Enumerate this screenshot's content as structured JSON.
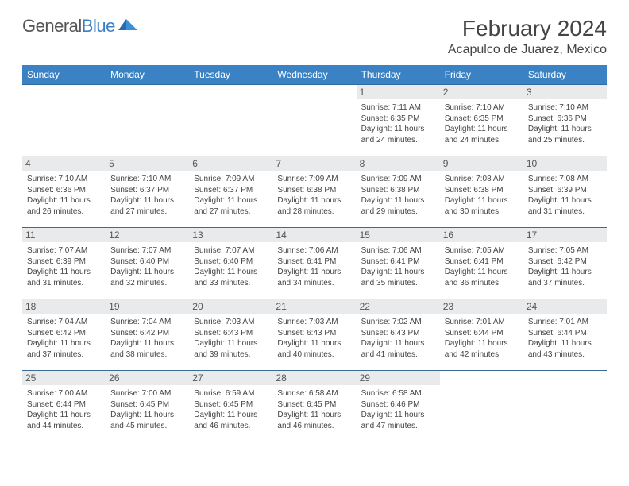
{
  "logo": {
    "word1": "General",
    "word2": "Blue"
  },
  "colors": {
    "header_bg": "#3b82c4",
    "header_text": "#ffffff",
    "row_divider": "#3b6a94",
    "daynum_bg": "#e9eaeb",
    "text": "#444444",
    "logo_gray": "#555555",
    "logo_blue": "#3b7fc4",
    "background": "#ffffff"
  },
  "title": "February 2024",
  "location": "Acapulco de Juarez, Mexico",
  "weekdays": [
    "Sunday",
    "Monday",
    "Tuesday",
    "Wednesday",
    "Thursday",
    "Friday",
    "Saturday"
  ],
  "weeks": [
    [
      {
        "empty": true
      },
      {
        "empty": true
      },
      {
        "empty": true
      },
      {
        "empty": true
      },
      {
        "day": "1",
        "sunrise": "Sunrise: 7:11 AM",
        "sunset": "Sunset: 6:35 PM",
        "daylight1": "Daylight: 11 hours",
        "daylight2": "and 24 minutes."
      },
      {
        "day": "2",
        "sunrise": "Sunrise: 7:10 AM",
        "sunset": "Sunset: 6:35 PM",
        "daylight1": "Daylight: 11 hours",
        "daylight2": "and 24 minutes."
      },
      {
        "day": "3",
        "sunrise": "Sunrise: 7:10 AM",
        "sunset": "Sunset: 6:36 PM",
        "daylight1": "Daylight: 11 hours",
        "daylight2": "and 25 minutes."
      }
    ],
    [
      {
        "day": "4",
        "sunrise": "Sunrise: 7:10 AM",
        "sunset": "Sunset: 6:36 PM",
        "daylight1": "Daylight: 11 hours",
        "daylight2": "and 26 minutes."
      },
      {
        "day": "5",
        "sunrise": "Sunrise: 7:10 AM",
        "sunset": "Sunset: 6:37 PM",
        "daylight1": "Daylight: 11 hours",
        "daylight2": "and 27 minutes."
      },
      {
        "day": "6",
        "sunrise": "Sunrise: 7:09 AM",
        "sunset": "Sunset: 6:37 PM",
        "daylight1": "Daylight: 11 hours",
        "daylight2": "and 27 minutes."
      },
      {
        "day": "7",
        "sunrise": "Sunrise: 7:09 AM",
        "sunset": "Sunset: 6:38 PM",
        "daylight1": "Daylight: 11 hours",
        "daylight2": "and 28 minutes."
      },
      {
        "day": "8",
        "sunrise": "Sunrise: 7:09 AM",
        "sunset": "Sunset: 6:38 PM",
        "daylight1": "Daylight: 11 hours",
        "daylight2": "and 29 minutes."
      },
      {
        "day": "9",
        "sunrise": "Sunrise: 7:08 AM",
        "sunset": "Sunset: 6:38 PM",
        "daylight1": "Daylight: 11 hours",
        "daylight2": "and 30 minutes."
      },
      {
        "day": "10",
        "sunrise": "Sunrise: 7:08 AM",
        "sunset": "Sunset: 6:39 PM",
        "daylight1": "Daylight: 11 hours",
        "daylight2": "and 31 minutes."
      }
    ],
    [
      {
        "day": "11",
        "sunrise": "Sunrise: 7:07 AM",
        "sunset": "Sunset: 6:39 PM",
        "daylight1": "Daylight: 11 hours",
        "daylight2": "and 31 minutes."
      },
      {
        "day": "12",
        "sunrise": "Sunrise: 7:07 AM",
        "sunset": "Sunset: 6:40 PM",
        "daylight1": "Daylight: 11 hours",
        "daylight2": "and 32 minutes."
      },
      {
        "day": "13",
        "sunrise": "Sunrise: 7:07 AM",
        "sunset": "Sunset: 6:40 PM",
        "daylight1": "Daylight: 11 hours",
        "daylight2": "and 33 minutes."
      },
      {
        "day": "14",
        "sunrise": "Sunrise: 7:06 AM",
        "sunset": "Sunset: 6:41 PM",
        "daylight1": "Daylight: 11 hours",
        "daylight2": "and 34 minutes."
      },
      {
        "day": "15",
        "sunrise": "Sunrise: 7:06 AM",
        "sunset": "Sunset: 6:41 PM",
        "daylight1": "Daylight: 11 hours",
        "daylight2": "and 35 minutes."
      },
      {
        "day": "16",
        "sunrise": "Sunrise: 7:05 AM",
        "sunset": "Sunset: 6:41 PM",
        "daylight1": "Daylight: 11 hours",
        "daylight2": "and 36 minutes."
      },
      {
        "day": "17",
        "sunrise": "Sunrise: 7:05 AM",
        "sunset": "Sunset: 6:42 PM",
        "daylight1": "Daylight: 11 hours",
        "daylight2": "and 37 minutes."
      }
    ],
    [
      {
        "day": "18",
        "sunrise": "Sunrise: 7:04 AM",
        "sunset": "Sunset: 6:42 PM",
        "daylight1": "Daylight: 11 hours",
        "daylight2": "and 37 minutes."
      },
      {
        "day": "19",
        "sunrise": "Sunrise: 7:04 AM",
        "sunset": "Sunset: 6:42 PM",
        "daylight1": "Daylight: 11 hours",
        "daylight2": "and 38 minutes."
      },
      {
        "day": "20",
        "sunrise": "Sunrise: 7:03 AM",
        "sunset": "Sunset: 6:43 PM",
        "daylight1": "Daylight: 11 hours",
        "daylight2": "and 39 minutes."
      },
      {
        "day": "21",
        "sunrise": "Sunrise: 7:03 AM",
        "sunset": "Sunset: 6:43 PM",
        "daylight1": "Daylight: 11 hours",
        "daylight2": "and 40 minutes."
      },
      {
        "day": "22",
        "sunrise": "Sunrise: 7:02 AM",
        "sunset": "Sunset: 6:43 PM",
        "daylight1": "Daylight: 11 hours",
        "daylight2": "and 41 minutes."
      },
      {
        "day": "23",
        "sunrise": "Sunrise: 7:01 AM",
        "sunset": "Sunset: 6:44 PM",
        "daylight1": "Daylight: 11 hours",
        "daylight2": "and 42 minutes."
      },
      {
        "day": "24",
        "sunrise": "Sunrise: 7:01 AM",
        "sunset": "Sunset: 6:44 PM",
        "daylight1": "Daylight: 11 hours",
        "daylight2": "and 43 minutes."
      }
    ],
    [
      {
        "day": "25",
        "sunrise": "Sunrise: 7:00 AM",
        "sunset": "Sunset: 6:44 PM",
        "daylight1": "Daylight: 11 hours",
        "daylight2": "and 44 minutes."
      },
      {
        "day": "26",
        "sunrise": "Sunrise: 7:00 AM",
        "sunset": "Sunset: 6:45 PM",
        "daylight1": "Daylight: 11 hours",
        "daylight2": "and 45 minutes."
      },
      {
        "day": "27",
        "sunrise": "Sunrise: 6:59 AM",
        "sunset": "Sunset: 6:45 PM",
        "daylight1": "Daylight: 11 hours",
        "daylight2": "and 46 minutes."
      },
      {
        "day": "28",
        "sunrise": "Sunrise: 6:58 AM",
        "sunset": "Sunset: 6:45 PM",
        "daylight1": "Daylight: 11 hours",
        "daylight2": "and 46 minutes."
      },
      {
        "day": "29",
        "sunrise": "Sunrise: 6:58 AM",
        "sunset": "Sunset: 6:46 PM",
        "daylight1": "Daylight: 11 hours",
        "daylight2": "and 47 minutes."
      },
      {
        "empty": true
      },
      {
        "empty": true
      }
    ]
  ]
}
